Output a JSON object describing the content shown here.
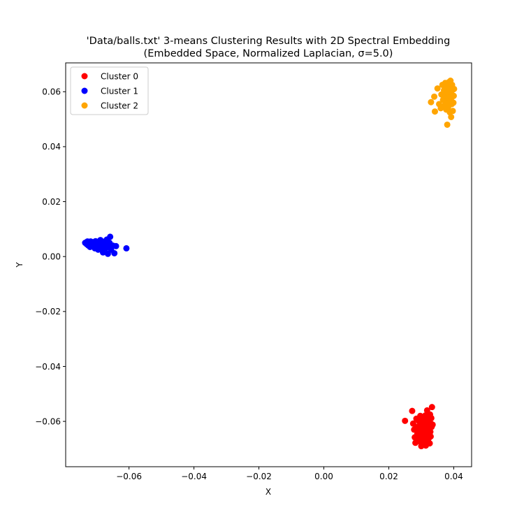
{
  "chart_data": {
    "type": "scatter",
    "title": "'Data/balls.txt' 3-means Clustering Results with 2D Spectral Embedding",
    "subtitle": "(Embedded Space, Normalized Laplacian, σ=5.0)",
    "xlabel": "X",
    "ylabel": "Y",
    "xlim": [
      -0.0795,
      0.0455
    ],
    "ylim": [
      -0.0765,
      0.0705
    ],
    "x_ticks": [
      -0.06,
      -0.04,
      -0.02,
      0.0,
      0.02,
      0.04
    ],
    "x_tick_labels": [
      "−0.06",
      "−0.04",
      "−0.02",
      "0.00",
      "0.02",
      "0.04"
    ],
    "y_ticks": [
      -0.06,
      -0.04,
      -0.02,
      0.0,
      0.02,
      0.04,
      0.06
    ],
    "y_tick_labels": [
      "−0.06",
      "−0.04",
      "−0.02",
      "0.00",
      "0.02",
      "0.04",
      "0.06"
    ],
    "grid": false,
    "legend_position": "top-left",
    "series": [
      {
        "name": "Cluster 0",
        "color": "#ff0000",
        "points": [
          [
            0.025,
            -0.0598
          ],
          [
            0.0272,
            -0.0562
          ],
          [
            0.0275,
            -0.0608
          ],
          [
            0.0278,
            -0.063
          ],
          [
            0.028,
            -0.0658
          ],
          [
            0.0282,
            -0.0678
          ],
          [
            0.0285,
            -0.059
          ],
          [
            0.0287,
            -0.062
          ],
          [
            0.0288,
            -0.0645
          ],
          [
            0.029,
            -0.0668
          ],
          [
            0.0292,
            -0.0598
          ],
          [
            0.0293,
            -0.0635
          ],
          [
            0.0295,
            -0.0655
          ],
          [
            0.0296,
            -0.0612
          ],
          [
            0.0297,
            -0.058
          ],
          [
            0.0298,
            -0.0675
          ],
          [
            0.0299,
            -0.064
          ],
          [
            0.03,
            -0.069
          ],
          [
            0.0301,
            -0.0602
          ],
          [
            0.0302,
            -0.0625
          ],
          [
            0.0303,
            -0.066
          ],
          [
            0.0304,
            -0.0585
          ],
          [
            0.0305,
            -0.0648
          ],
          [
            0.0306,
            -0.068
          ],
          [
            0.0307,
            -0.061
          ],
          [
            0.0308,
            -0.0632
          ],
          [
            0.0309,
            -0.0595
          ],
          [
            0.031,
            -0.0668
          ],
          [
            0.0311,
            -0.0618
          ],
          [
            0.0312,
            -0.0642
          ],
          [
            0.0313,
            -0.0578
          ],
          [
            0.0314,
            -0.0688
          ],
          [
            0.0315,
            -0.0605
          ],
          [
            0.0316,
            -0.0652
          ],
          [
            0.0317,
            -0.063
          ],
          [
            0.0318,
            -0.056
          ],
          [
            0.0319,
            -0.0672
          ],
          [
            0.032,
            -0.0615
          ],
          [
            0.0321,
            -0.059
          ],
          [
            0.0322,
            -0.0645
          ],
          [
            0.0323,
            -0.0662
          ],
          [
            0.0324,
            -0.06
          ],
          [
            0.0325,
            -0.0625
          ],
          [
            0.0326,
            -0.068
          ],
          [
            0.0327,
            -0.0575
          ],
          [
            0.0328,
            -0.0638
          ],
          [
            0.0329,
            -0.0655
          ],
          [
            0.033,
            -0.0608
          ],
          [
            0.0331,
            -0.0588
          ],
          [
            0.0332,
            -0.062
          ],
          [
            0.0333,
            -0.0548
          ],
          [
            0.0335,
            -0.0612
          ]
        ]
      },
      {
        "name": "Cluster 1",
        "color": "#0000ff",
        "points": [
          [
            -0.0735,
            0.005
          ],
          [
            -0.073,
            0.0045
          ],
          [
            -0.0728,
            0.0055
          ],
          [
            -0.0725,
            0.004
          ],
          [
            -0.0722,
            0.005
          ],
          [
            -0.072,
            0.0035
          ],
          [
            -0.0718,
            0.0055
          ],
          [
            -0.0715,
            0.0045
          ],
          [
            -0.0712,
            0.0038
          ],
          [
            -0.071,
            0.0052
          ],
          [
            -0.0708,
            0.0042
          ],
          [
            -0.0705,
            0.003
          ],
          [
            -0.0703,
            0.0056
          ],
          [
            -0.07,
            0.0048
          ],
          [
            -0.0698,
            0.0036
          ],
          [
            -0.0695,
            0.0025
          ],
          [
            -0.0693,
            0.0052
          ],
          [
            -0.069,
            0.0042
          ],
          [
            -0.0688,
            0.006
          ],
          [
            -0.0685,
            0.003
          ],
          [
            -0.0683,
            0.0048
          ],
          [
            -0.068,
            0.0015
          ],
          [
            -0.0678,
            0.004
          ],
          [
            -0.0675,
            0.0055
          ],
          [
            -0.0672,
            0.003
          ],
          [
            -0.067,
            0.0045
          ],
          [
            -0.0668,
            0.0062
          ],
          [
            -0.0665,
            0.001
          ],
          [
            -0.0662,
            0.0035
          ],
          [
            -0.066,
            0.005
          ],
          [
            -0.0658,
            0.0072
          ],
          [
            -0.0655,
            0.0025
          ],
          [
            -0.065,
            0.004
          ],
          [
            -0.0645,
            0.0012
          ],
          [
            -0.064,
            0.0038
          ],
          [
            -0.0608,
            0.003
          ]
        ]
      },
      {
        "name": "Cluster 2",
        "color": "#ffa500",
        "points": [
          [
            0.033,
            0.0562
          ],
          [
            0.034,
            0.0582
          ],
          [
            0.0342,
            0.0528
          ],
          [
            0.035,
            0.0612
          ],
          [
            0.0355,
            0.0555
          ],
          [
            0.036,
            0.054
          ],
          [
            0.0362,
            0.059
          ],
          [
            0.0365,
            0.0625
          ],
          [
            0.0367,
            0.057
          ],
          [
            0.037,
            0.0605
          ],
          [
            0.0372,
            0.055
          ],
          [
            0.0374,
            0.0632
          ],
          [
            0.0375,
            0.0585
          ],
          [
            0.0377,
            0.0535
          ],
          [
            0.0378,
            0.0612
          ],
          [
            0.0379,
            0.0565
          ],
          [
            0.038,
            0.048
          ],
          [
            0.0381,
            0.0598
          ],
          [
            0.0382,
            0.062
          ],
          [
            0.0383,
            0.0545
          ],
          [
            0.0384,
            0.0578
          ],
          [
            0.0385,
            0.0635
          ],
          [
            0.0386,
            0.056
          ],
          [
            0.0387,
            0.0602
          ],
          [
            0.0388,
            0.0525
          ],
          [
            0.0389,
            0.0615
          ],
          [
            0.039,
            0.064
          ],
          [
            0.0391,
            0.0572
          ],
          [
            0.0392,
            0.0508
          ],
          [
            0.0393,
            0.059
          ],
          [
            0.0394,
            0.0555
          ],
          [
            0.0395,
            0.0625
          ],
          [
            0.0396,
            0.0582
          ],
          [
            0.0397,
            0.053
          ],
          [
            0.0398,
            0.0608
          ],
          [
            0.0399,
            0.056
          ],
          [
            0.04,
            0.0585
          ],
          [
            0.0401,
            0.061
          ]
        ]
      }
    ]
  }
}
